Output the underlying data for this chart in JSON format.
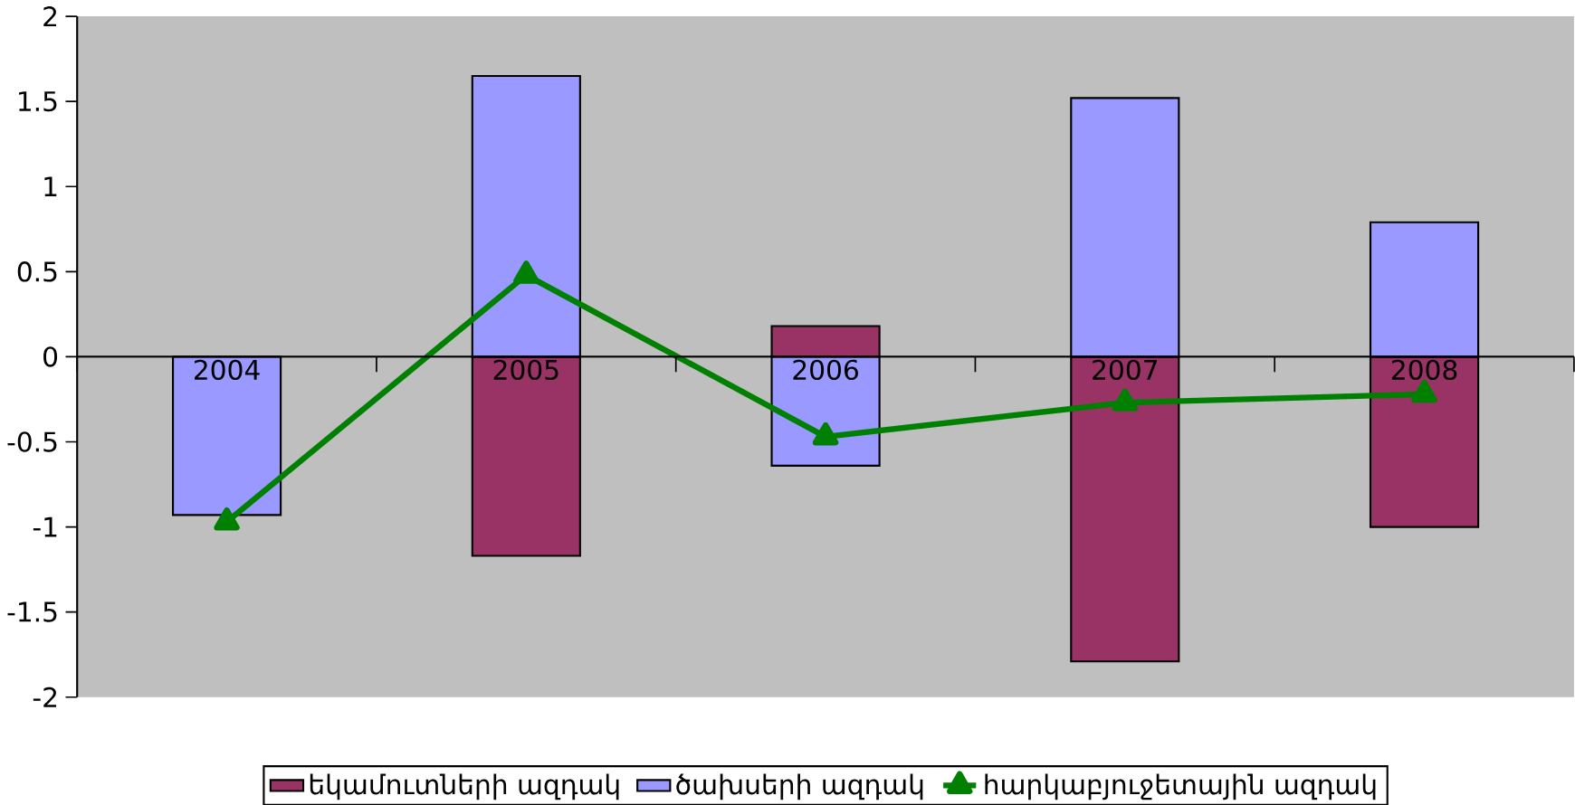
{
  "chart_data": {
    "type": "bar",
    "stacked": true,
    "categories": [
      "2004",
      "2005",
      "2006",
      "2007",
      "2008"
    ],
    "series": [
      {
        "name": "եկամուտների ազդակ",
        "color": "#993366",
        "values": [
          null,
          -1.17,
          0.18,
          -1.79,
          -1.0
        ]
      },
      {
        "name": "ծախսերի ազդակ",
        "color": "#9999ff",
        "values": [
          -0.93,
          1.65,
          -0.64,
          1.52,
          0.79
        ]
      },
      {
        "name": "հարկաբյուջետային ազդակ",
        "type": "line",
        "color": "#008000",
        "marker": "triangle",
        "values": [
          -0.97,
          0.48,
          -0.47,
          -0.27,
          -0.22
        ]
      }
    ],
    "ylim": [
      -2,
      2
    ],
    "yticks": [
      -2,
      -1.5,
      -1,
      -0.5,
      0,
      0.5,
      1,
      1.5,
      2
    ],
    "grid": false,
    "legend": "bottom"
  }
}
